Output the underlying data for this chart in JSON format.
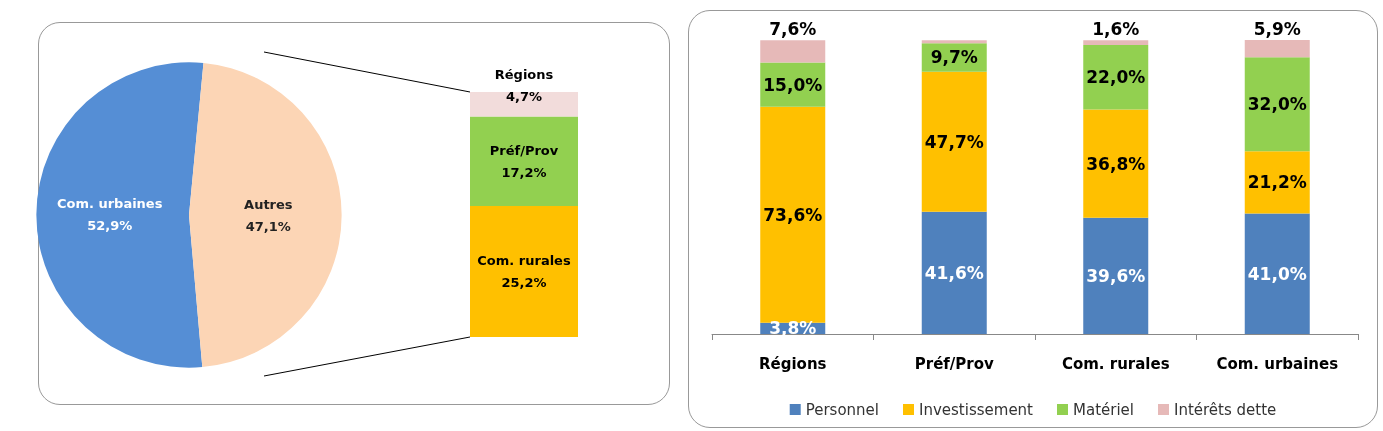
{
  "chart_data": [
    {
      "type": "pie",
      "categories": [
        "Com. urbaines",
        "Autres"
      ],
      "values": [
        52.9,
        47.1
      ],
      "colors": [
        "#558ed5",
        "#fcd5b5"
      ],
      "value_labels": [
        "52,9%",
        "47,1%"
      ],
      "legend": false
    },
    {
      "type": "bar",
      "stacked": true,
      "categories": [
        null
      ],
      "tick_labels": false,
      "legend": false,
      "series": [
        {
          "name": "Com. rurales",
          "color": "#ffc000",
          "values": [
            25.2
          ],
          "value_labels": [
            "25,2%"
          ]
        },
        {
          "name": "Préf/Prov",
          "color": "#92d050",
          "values": [
            17.2
          ],
          "value_labels": [
            "17,2%"
          ]
        },
        {
          "name": "Régions",
          "color": "#f2dcdb",
          "values": [
            4.7
          ],
          "value_labels": [
            "4,7%"
          ]
        }
      ]
    },
    {
      "type": "bar",
      "stacked": true,
      "categories": [
        "Régions",
        "Préf/Prov",
        "Com. rurales",
        "Com. urbaines"
      ],
      "tick_labels": "x",
      "legend": "bottom",
      "series": [
        {
          "name": "Personnel",
          "color": "#4f81bd",
          "values": [
            3.8,
            41.6,
            39.6,
            41.0
          ],
          "value_labels": [
            "3,8%",
            "41,6%",
            "39,6%",
            "41,0%"
          ]
        },
        {
          "name": "Investissement",
          "color": "#ffc000",
          "values": [
            73.6,
            47.7,
            36.8,
            21.2
          ],
          "value_labels": [
            "73,6%",
            "47,7%",
            "36,8%",
            "21,2%"
          ]
        },
        {
          "name": "Matériel",
          "color": "#92d050",
          "values": [
            15.0,
            9.7,
            22.0,
            32.0
          ],
          "value_labels": [
            "15,0%",
            "9,7%",
            "22,0%",
            "32,0%"
          ]
        },
        {
          "name": "Intérêts dette",
          "color": "#e6b9b8",
          "values": [
            7.6,
            1.0,
            1.6,
            5.9
          ],
          "value_labels": [
            "7,6%",
            null,
            "1,6%",
            "5,9%"
          ]
        }
      ]
    }
  ]
}
